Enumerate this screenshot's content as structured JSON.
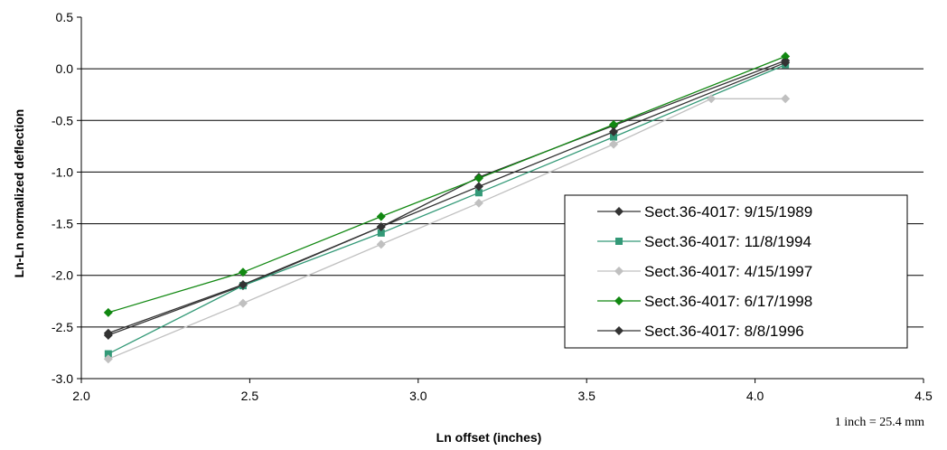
{
  "chart_data": {
    "type": "line",
    "xlabel": "Ln offset (inches)",
    "ylabel": "Ln-Ln normalized deflection",
    "xlim": [
      2.0,
      4.5
    ],
    "ylim": [
      -3.0,
      0.5
    ],
    "xticks": [
      "2.0",
      "2.5",
      "3.0",
      "3.5",
      "4.0",
      "4.5"
    ],
    "yticks": [
      "0.5",
      "0.0",
      "-0.5",
      "-1.0",
      "-1.5",
      "-2.0",
      "-2.5",
      "-3.0"
    ],
    "grid": "horizontal",
    "legend_position": "lower-right",
    "note": "1 inch = 25.4 mm",
    "series": [
      {
        "name": "Sect.36-4017: 9/15/1989",
        "color": "#333333",
        "marker": "diamond",
        "x": [
          2.08,
          2.48,
          2.89,
          3.18,
          3.58,
          4.09
        ],
        "y": [
          -2.58,
          -2.1,
          -1.53,
          -1.05,
          -0.55,
          0.08
        ]
      },
      {
        "name": "Sect.36-4017: 11/8/1994",
        "color": "#339977",
        "marker": "square",
        "x": [
          2.08,
          2.48,
          2.89,
          3.18,
          3.58,
          4.09
        ],
        "y": [
          -2.76,
          -2.1,
          -1.59,
          -1.2,
          -0.66,
          0.04
        ]
      },
      {
        "name": "Sect.36-4017: 4/15/1997",
        "color": "#c0c0c0",
        "marker": "diamond",
        "x": [
          2.08,
          2.48,
          2.89,
          3.18,
          3.58,
          3.87,
          4.09
        ],
        "y": [
          -2.81,
          -2.27,
          -1.7,
          -1.3,
          -0.73,
          -0.29,
          -0.29
        ]
      },
      {
        "name": "Sect.36-4017: 6/17/1998",
        "color": "#118811",
        "marker": "diamond",
        "x": [
          2.08,
          2.48,
          2.89,
          3.18,
          3.58,
          4.09
        ],
        "y": [
          -2.36,
          -1.97,
          -1.43,
          -1.06,
          -0.54,
          0.12
        ]
      },
      {
        "name": "Sect.36-4017: 8/8/1996",
        "color": "#333333",
        "marker": "diamond",
        "x": [
          2.08,
          2.48,
          2.89,
          3.18,
          3.58,
          4.09
        ],
        "y": [
          -2.56,
          -2.09,
          -1.53,
          -1.14,
          -0.61,
          0.06
        ]
      }
    ]
  }
}
